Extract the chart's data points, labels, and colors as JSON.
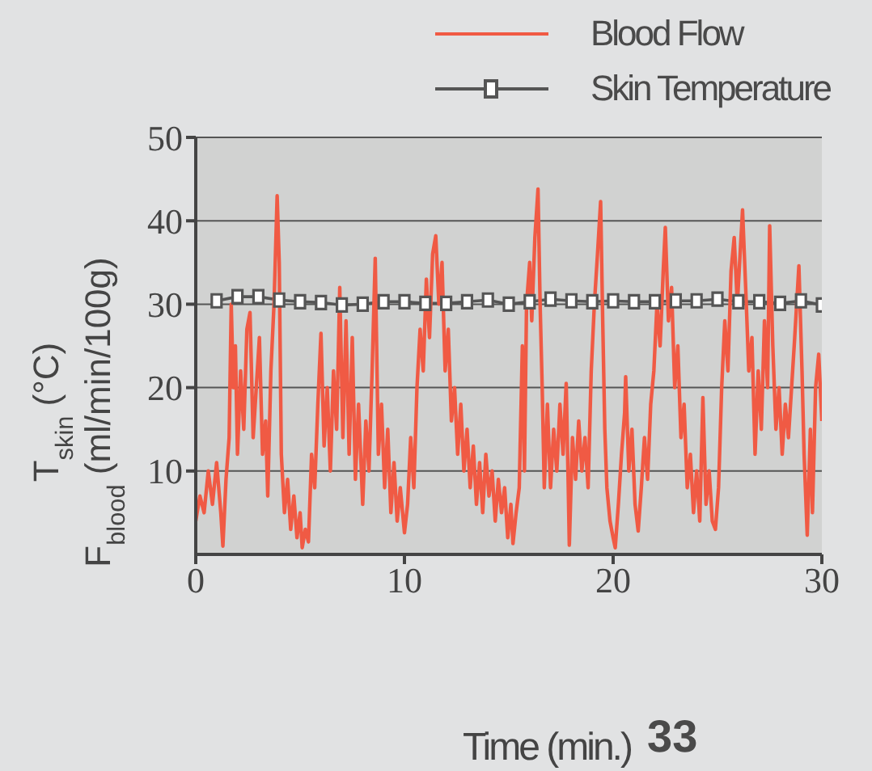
{
  "chart_data": {
    "type": "line",
    "xlabel": "Time (min.)",
    "ylabel": "T$_{skin}$ (°C)\nF$_{blood}$ (ml/min/100g)",
    "annotations": [
      "33"
    ],
    "xlim": [
      0,
      30
    ],
    "xticks": [
      0,
      10,
      20,
      30
    ],
    "ylim": [
      0,
      50
    ],
    "yticks": [
      10,
      20,
      30,
      40,
      50
    ],
    "grid": "y",
    "legend": "top right",
    "series": [
      {
        "name": "Blood Flow",
        "color": "#f05a44",
        "marker": "none",
        "x": [
          0,
          0.2,
          0.4,
          0.6,
          0.8,
          1.0,
          1.2,
          1.3,
          1.45,
          1.6,
          1.7,
          1.8,
          1.9,
          2.0,
          2.15,
          2.3,
          2.45,
          2.6,
          2.75,
          2.9,
          3.05,
          3.2,
          3.35,
          3.45,
          3.6,
          3.75,
          3.9,
          4.0,
          4.1,
          4.25,
          4.4,
          4.55,
          4.7,
          4.85,
          5.0,
          5.1,
          5.25,
          5.4,
          5.55,
          5.7,
          5.85,
          6.0,
          6.15,
          6.3,
          6.45,
          6.6,
          6.75,
          6.9,
          7.05,
          7.2,
          7.35,
          7.5,
          7.65,
          7.8,
          8.0,
          8.15,
          8.3,
          8.45,
          8.6,
          8.75,
          8.9,
          9.05,
          9.2,
          9.35,
          9.5,
          9.65,
          9.8,
          10.0,
          10.15,
          10.3,
          10.45,
          10.6,
          10.75,
          10.9,
          11.05,
          11.2,
          11.35,
          11.5,
          11.65,
          11.8,
          11.95,
          12.1,
          12.25,
          12.4,
          12.55,
          12.7,
          12.85,
          13.0,
          13.15,
          13.3,
          13.45,
          13.6,
          13.75,
          13.9,
          14.05,
          14.2,
          14.35,
          14.5,
          14.65,
          14.8,
          14.95,
          15.1,
          15.2,
          15.35,
          15.5,
          15.65,
          15.75,
          15.85,
          16.0,
          16.1,
          16.25,
          16.4,
          16.5,
          16.6,
          16.7,
          16.85,
          17.0,
          17.15,
          17.3,
          17.45,
          17.6,
          17.75,
          17.85,
          17.9,
          18.05,
          18.2,
          18.35,
          18.5,
          18.65,
          18.8,
          18.95,
          19.1,
          19.25,
          19.4,
          19.5,
          19.6,
          19.7,
          19.85,
          20.0,
          20.1,
          20.25,
          20.4,
          20.55,
          20.6,
          20.75,
          20.9,
          21.05,
          21.2,
          21.35,
          21.5,
          21.65,
          21.8,
          21.95,
          22.1,
          22.25,
          22.4,
          22.5,
          22.65,
          22.8,
          22.95,
          23.1,
          23.25,
          23.4,
          23.55,
          23.7,
          23.85,
          24.0,
          24.15,
          24.3,
          24.45,
          24.6,
          24.75,
          24.9,
          25.05,
          25.2,
          25.35,
          25.5,
          25.65,
          25.8,
          25.95,
          26.2,
          26.35,
          26.5,
          26.65,
          26.8,
          26.95,
          27.1,
          27.25,
          27.4,
          27.5,
          27.65,
          27.8,
          27.95,
          28.1,
          28.25,
          28.4,
          28.55,
          28.7,
          28.9,
          29.05,
          29.15,
          29.3,
          29.45,
          29.55,
          29.7,
          29.85,
          30.0
        ],
        "values": [
          4,
          7,
          5,
          10,
          6,
          11,
          5,
          1,
          9,
          14,
          30,
          20,
          25,
          12,
          22,
          15,
          27,
          29,
          14,
          20,
          26,
          12,
          16,
          7,
          22,
          30,
          43,
          35,
          12,
          5,
          9,
          3,
          7,
          2,
          5,
          0.8,
          3,
          1.5,
          12,
          8,
          18,
          26.5,
          13,
          20,
          10,
          22,
          15,
          32,
          14,
          28,
          12,
          26,
          9,
          18,
          6,
          16,
          10,
          22,
          35.5,
          12,
          18,
          8,
          15,
          5,
          11,
          4,
          8,
          2.6,
          6,
          14,
          8,
          20,
          27,
          22,
          33,
          26,
          36,
          38.2,
          30,
          35,
          22,
          27,
          16,
          20,
          12,
          18,
          10,
          15,
          8,
          13,
          6,
          11,
          5,
          12,
          7,
          10,
          4,
          9,
          5,
          8,
          2,
          6,
          1.3,
          5,
          8,
          25,
          10,
          30,
          35,
          28,
          38,
          43.8,
          30,
          20,
          8,
          18,
          8,
          15,
          10,
          18,
          12,
          20.5,
          8,
          1.1,
          14,
          9,
          16,
          10,
          14,
          8,
          22,
          30,
          36,
          42.3,
          28,
          15,
          8,
          4,
          2,
          0.8,
          6,
          12,
          17,
          21.3,
          10,
          15,
          6,
          2.8,
          8,
          14,
          9,
          18,
          22,
          30,
          25,
          34,
          39.2,
          28,
          32,
          20,
          25,
          14,
          18,
          8,
          12,
          5,
          10,
          4,
          18.8,
          6,
          10,
          4,
          3,
          8,
          20,
          28,
          22,
          34,
          38,
          30,
          41.3,
          32,
          22,
          26,
          12,
          22,
          15,
          28,
          20,
          39.4,
          25,
          15,
          20,
          12,
          18,
          14,
          20,
          26,
          34.6,
          22,
          12,
          2.3,
          15,
          5,
          20,
          24,
          16
        ]
      },
      {
        "name": "Skin Temperature",
        "color": "#555555",
        "marker": "square",
        "x": [
          1,
          2,
          3,
          4,
          5,
          6,
          7,
          8,
          9,
          10,
          11,
          12,
          13,
          14,
          15,
          16,
          17,
          18,
          19,
          20,
          21,
          22,
          23,
          24,
          25,
          26,
          27,
          28,
          29,
          30
        ],
        "values": [
          30.4,
          30.9,
          30.9,
          30.5,
          30.3,
          30.2,
          29.9,
          30.0,
          30.3,
          30.3,
          30.1,
          30.1,
          30.3,
          30.5,
          30.0,
          30.3,
          30.6,
          30.4,
          30.3,
          30.4,
          30.3,
          30.3,
          30.4,
          30.4,
          30.6,
          30.3,
          30.3,
          30.1,
          30.4,
          29.9
        ]
      }
    ]
  }
}
